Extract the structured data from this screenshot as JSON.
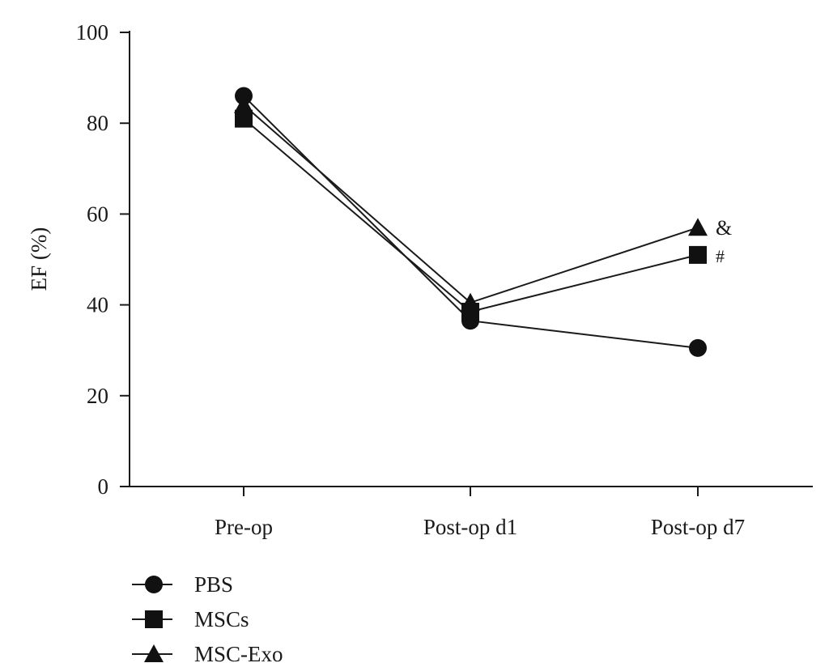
{
  "chart_data": {
    "type": "line",
    "title": "",
    "xlabel": "",
    "ylabel": "EF (%)",
    "categories": [
      "Pre-op",
      "Post-op d1",
      "Post-op d7"
    ],
    "ylim": [
      0,
      100
    ],
    "yticks": [
      0,
      20,
      40,
      60,
      80,
      100
    ],
    "grid": false,
    "legend_position": "bottom-left",
    "series": [
      {
        "name": "PBS",
        "marker": "circle",
        "values": [
          86,
          36.5,
          30.5
        ]
      },
      {
        "name": "MSCs",
        "marker": "square",
        "values": [
          81,
          38.5,
          51
        ]
      },
      {
        "name": "MSC-Exo",
        "marker": "triangle",
        "values": [
          84,
          40.5,
          57
        ]
      }
    ],
    "annotations": [
      {
        "series": "MSC-Exo",
        "category": "Post-op d7",
        "text": "&"
      },
      {
        "series": "MSCs",
        "category": "Post-op d7",
        "text": "#"
      }
    ],
    "colors": {
      "line": "#1a1a1a",
      "marker": "#111111"
    }
  }
}
